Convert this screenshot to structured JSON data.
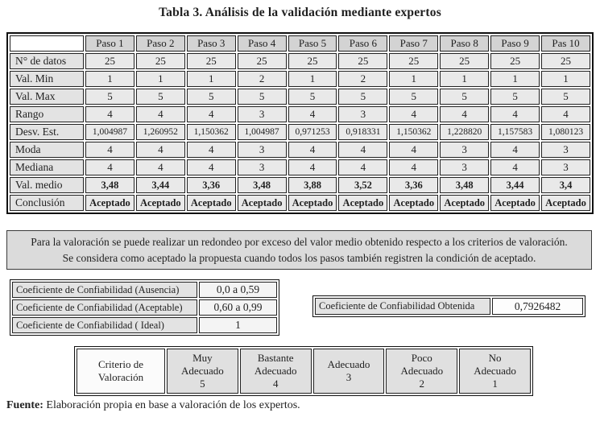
{
  "title": "Tabla 3. Análisis de la validación mediante expertos",
  "main_table": {
    "corner": "",
    "columns": [
      "Paso 1",
      "Paso 2",
      "Paso 3",
      "Paso 4",
      "Paso 5",
      "Paso 6",
      "Paso 7",
      "Paso 8",
      "Paso 9",
      "Pas 10"
    ],
    "rows": [
      {
        "label": "N° de datos",
        "values": [
          "25",
          "25",
          "25",
          "25",
          "25",
          "25",
          "25",
          "25",
          "25",
          "25"
        ]
      },
      {
        "label": "Val. Min",
        "values": [
          "1",
          "1",
          "1",
          "2",
          "1",
          "2",
          "1",
          "1",
          "1",
          "1"
        ]
      },
      {
        "label": "Val. Max",
        "values": [
          "5",
          "5",
          "5",
          "5",
          "5",
          "5",
          "5",
          "5",
          "5",
          "5"
        ]
      },
      {
        "label": "Rango",
        "values": [
          "4",
          "4",
          "4",
          "3",
          "4",
          "3",
          "4",
          "4",
          "4",
          "4"
        ]
      },
      {
        "label": "Desv. Est.",
        "small": true,
        "values": [
          "1,004987",
          "1,260952",
          "1,150362",
          "1,004987",
          "0,971253",
          "0,918331",
          "1,150362",
          "1,228820",
          "1,157583",
          "1,080123"
        ]
      },
      {
        "label": "Moda",
        "values": [
          "4",
          "4",
          "4",
          "3",
          "4",
          "4",
          "4",
          "3",
          "4",
          "3"
        ]
      },
      {
        "label": "Mediana",
        "values": [
          "4",
          "4",
          "4",
          "3",
          "4",
          "4",
          "4",
          "3",
          "4",
          "3"
        ]
      },
      {
        "label": "Val. medio",
        "bold": true,
        "values": [
          "3,48",
          "3,44",
          "3,36",
          "3,48",
          "3,88",
          "3,52",
          "3,36",
          "3,48",
          "3,44",
          "3,4"
        ]
      },
      {
        "label": "Conclusión",
        "bold": true,
        "values": [
          "Aceptado",
          "Aceptado",
          "Aceptado",
          "Aceptado",
          "Aceptado",
          "Aceptado",
          "Aceptado",
          "Aceptado",
          "Aceptado",
          "Aceptado"
        ]
      }
    ]
  },
  "note": {
    "line1": "Para la valoración se puede realizar un redondeo por exceso del valor medio obtenido respecto a los criterios de valoración.",
    "line2": "Se considera como aceptado la propuesta cuando todos los pasos también registren la condición de aceptado."
  },
  "reliability_table": {
    "rows": [
      {
        "label": "Coeficiente de Confiabilidad (Ausencia)",
        "value": "0,0 a 0,59"
      },
      {
        "label": "Coeficiente de Confiabilidad (Aceptable)",
        "value": "0,60 a 0,99"
      },
      {
        "label": "Coeficiente de Confiabilidad ( Ideal)",
        "value": "1"
      }
    ]
  },
  "obtained": {
    "label": "Coeficiente de Confiabilidad Obtenida",
    "value": "0,7926482"
  },
  "criteria_table": {
    "header_lines": [
      "Criterio de",
      "Valoración"
    ],
    "options": [
      [
        "Muy",
        "Adecuado",
        "5"
      ],
      [
        "Bastante",
        "Adecuado",
        "4"
      ],
      [
        "Adecuado",
        "3"
      ],
      [
        "Poco",
        "Adecuado",
        "2"
      ],
      [
        "No",
        "Adecuado",
        "1"
      ]
    ]
  },
  "fuente": {
    "label": "Fuente:",
    "text": " Elaboración propia en base a valoración de los expertos."
  }
}
